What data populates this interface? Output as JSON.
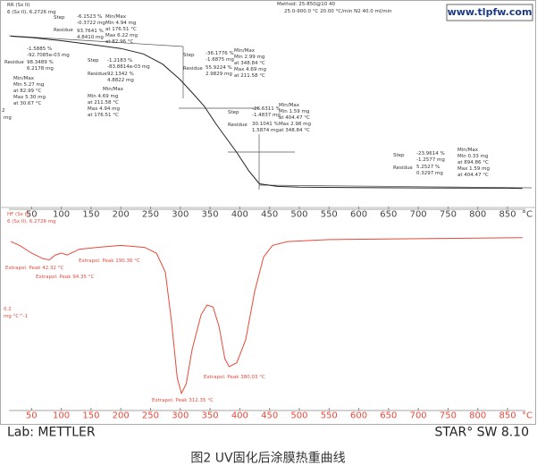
{
  "chart_data": [
    {
      "type": "line",
      "color": "#222222",
      "xlabel": "°C",
      "xlim": [
        12,
        880
      ],
      "xticks": [
        50,
        100,
        150,
        200,
        250,
        300,
        350,
        400,
        450,
        500,
        550,
        600,
        650,
        700,
        750,
        800,
        850
      ],
      "ylim": [
        0,
        6.6
      ],
      "x": [
        15,
        50,
        100,
        150,
        200,
        238,
        270,
        299,
        320,
        340,
        360,
        373,
        395,
        415,
        433,
        463,
        500,
        600,
        700,
        850,
        875
      ],
      "values": [
        6.17,
        6.12,
        6.0,
        5.85,
        5.7,
        5.49,
        5.1,
        4.52,
        4.0,
        3.49,
        2.8,
        2.39,
        1.7,
        1.0,
        0.5,
        0.4,
        0.37,
        0.35,
        0.34,
        0.33,
        0.32
      ],
      "annotations": [
        "RR  (Sx II)",
        "6  (Sx II), 6.2726 mg",
        "Step",
        "-6.1523 %",
        "-0.3722 mg",
        "Residue",
        "93.7641 %",
        "4.8410 mg",
        "Min/Max",
        "Min  4.94 mg",
        "at  176.51 °C",
        "Max  6.22 mg",
        "at  82.96 °C",
        "Method: 25-850@10  40",
        "25.0-900.0 °C 20.00 °C/min   N2 40.0 ml/min",
        "-1.5885 %",
        "-92.7085e-03 mg",
        "Residue",
        "98.3489 %",
        "6.2178 mg",
        "Min/Max",
        "Min  5.27 mg",
        "at  82.99 °C",
        "Max  5.30 mg",
        "at  30.67 °C",
        "2",
        "mg",
        "Step",
        "-1.2183 %",
        "-83.8814e-03 mg",
        "Residue",
        "92.1342 %",
        "4.8822 mg",
        "Min/Max",
        "Min  4.69 mg",
        "at  211.58 °C",
        "Max  4.94 mg",
        "at  176.51 °C",
        "Step",
        "-36.1776 %",
        "-1.6875 mg",
        "Residue",
        "55.9224 %",
        "2.9829 mg",
        "Min/Max",
        "Min  2.99 mg",
        "at  348.84 °C",
        "Max  4.69 mg",
        "at  211.58 °C",
        "Step",
        "-26.6311 %",
        "-1.4837 mg",
        "Residue",
        "30.1041 %",
        "1.5874 mg",
        "Min/Max",
        "Min  1.59 mg",
        "at  404.47 °C",
        "Max  2.98 mg",
        "at  348.84 °C",
        "Step",
        "-23.9614 %",
        "-1.2577 mg",
        "Residue",
        "5.2527 %",
        "0.3297 mg",
        "Min/Max",
        "Min  0.33 mg",
        "at  894.86 °C",
        "Max  1.59 mg",
        "at  404.47 °C"
      ]
    },
    {
      "type": "line",
      "color": "#e8483a",
      "xlabel": "°C",
      "xlim": [
        12,
        880
      ],
      "xticks": [
        50,
        100,
        150,
        200,
        250,
        300,
        350,
        400,
        450,
        500,
        550,
        600,
        650,
        700,
        750,
        800,
        850
      ],
      "ylim": [
        0,
        100
      ],
      "x": [
        15,
        30,
        50,
        70,
        80,
        90,
        100,
        110,
        130,
        160,
        200,
        240,
        260,
        275,
        285,
        295,
        302,
        310,
        320,
        335,
        345,
        355,
        365,
        375,
        382,
        395,
        410,
        425,
        440,
        455,
        480,
        550,
        700,
        875
      ],
      "values": [
        86,
        84,
        80,
        77,
        76.5,
        79,
        80,
        79,
        82,
        83,
        84,
        83,
        80,
        70,
        45,
        15,
        7,
        12,
        30,
        48,
        53,
        52,
        42,
        25,
        21,
        23,
        35,
        60,
        78,
        84,
        86,
        87,
        87.5,
        88
      ],
      "annotations": [
        "HF  (Sx II)",
        "6  (Sx II), 6.2726 mg",
        "Extrapol. Peak  42.32 °C",
        "Extrapol. Peak  94.35 °C",
        "Extrapol. Peak  190.36 °C",
        "0.2",
        "mg °C^-1",
        "Extrapol. Peak  380.03 °C",
        "Extrapol. Peak  312.35 °C"
      ]
    }
  ],
  "footer": {
    "lab": "Lab: METTLER",
    "software": "STAR° SW 8.10"
  },
  "caption": "图2   UV固化后涂膜热重曲线",
  "watermark": "www.tlpfw.com"
}
